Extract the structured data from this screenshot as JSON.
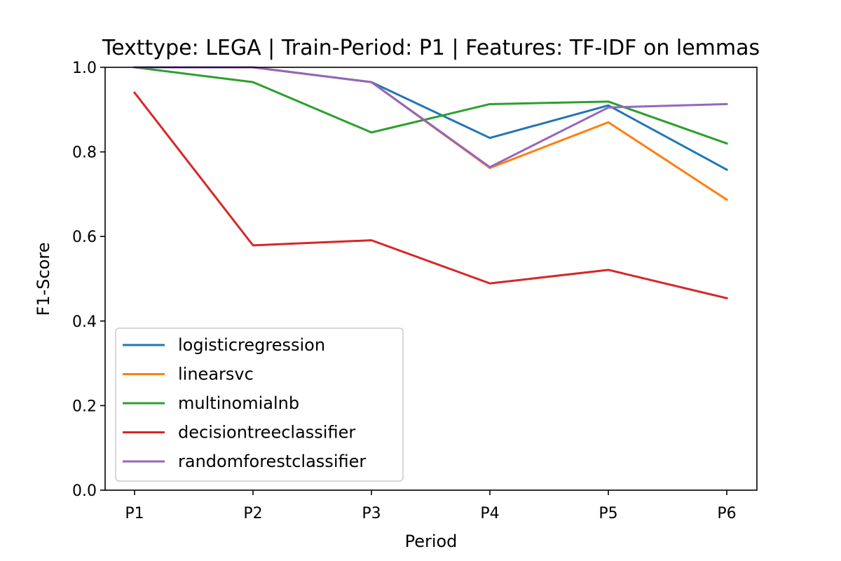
{
  "chart_data": {
    "type": "line",
    "title": "Texttype: LEGA | Train-Period: P1 | Features: TF-IDF on lemmas",
    "xlabel": "Period",
    "ylabel": "F1-Score",
    "categories": [
      "P1",
      "P2",
      "P3",
      "P4",
      "P5",
      "P6"
    ],
    "ylim": [
      0.0,
      1.0
    ],
    "yticks": [
      "0.0",
      "0.2",
      "0.4",
      "0.6",
      "0.8",
      "1.0"
    ],
    "grid": false,
    "legend_position": "lower-left",
    "series": [
      {
        "name": "logisticregression",
        "color": "#1f77b4",
        "values": [
          1.0,
          1.0,
          0.965,
          0.833,
          0.91,
          0.758
        ]
      },
      {
        "name": "linearsvc",
        "color": "#ff7f0e",
        "values": [
          1.0,
          1.0,
          0.965,
          0.762,
          0.87,
          0.687
        ]
      },
      {
        "name": "multinomialnb",
        "color": "#2ca02c",
        "values": [
          1.0,
          0.965,
          0.846,
          0.913,
          0.919,
          0.82
        ]
      },
      {
        "name": "decisiontreeclassifier",
        "color": "#d62728",
        "values": [
          0.94,
          0.579,
          0.591,
          0.489,
          0.521,
          0.454
        ]
      },
      {
        "name": "randomforestclassifier",
        "color": "#9467bd",
        "values": [
          1.0,
          1.0,
          0.965,
          0.764,
          0.905,
          0.913
        ]
      }
    ]
  }
}
